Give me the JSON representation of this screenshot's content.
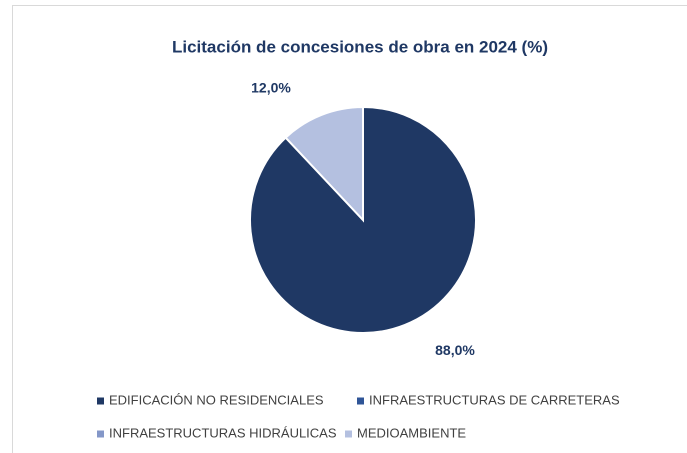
{
  "chart_data": {
    "type": "pie",
    "title": "Licitación de concesiones  de obra en 2024 (%)",
    "categories": [
      "EDIFICACIÓN NO RESIDENCIALES",
      "INFRAESTRUCTURAS DE CARRETERAS",
      "INFRAESTRUCTURAS HIDRÁULICAS",
      "MEDIOAMBIENTE"
    ],
    "values": [
      88,
      0,
      0,
      12
    ],
    "value_labels": [
      "88,0%",
      null,
      null,
      "12,0%"
    ],
    "colors": [
      "#1f3864",
      "#2f5597",
      "#8497c8",
      "#b4c0e0"
    ],
    "legend": "bottom"
  }
}
